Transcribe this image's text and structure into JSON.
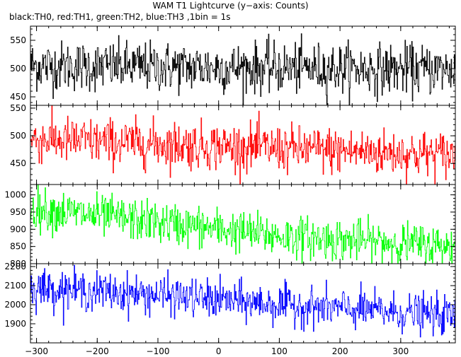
{
  "header": {
    "title": "WAM T1 Lightcurve (y−axis: Counts)",
    "subtitle": "black:TH0, red:TH1, green:TH2, blue:TH3 ,1bin = 1s"
  },
  "chart_data": {
    "type": "line",
    "x_ticks": [
      -300,
      -200,
      -100,
      0,
      100,
      200,
      300
    ],
    "xlim": [
      -310,
      390
    ],
    "bin_seconds": 1,
    "panels": [
      {
        "name": "TH0",
        "color": "#000000",
        "ylim": [
          435,
          575
        ],
        "y_ticks": [
          450,
          500,
          550
        ],
        "trend": [
          [
            -310,
            505
          ],
          [
            390,
            498
          ]
        ],
        "noise_sd": 22
      },
      {
        "name": "TH1",
        "color": "#ff0000",
        "ylim": [
          412,
          555
        ],
        "y_ticks": [
          450,
          500,
          550
        ],
        "trend": [
          [
            -310,
            494
          ],
          [
            390,
            465
          ]
        ],
        "noise_sd": 21
      },
      {
        "name": "TH2",
        "color": "#00ff00",
        "ylim": [
          800,
          1030
        ],
        "y_ticks": [
          800,
          850,
          900,
          950,
          1000
        ],
        "trend": [
          [
            -310,
            960
          ],
          [
            -100,
            920
          ],
          [
            100,
            880
          ],
          [
            390,
            850
          ]
        ],
        "noise_sd": 30
      },
      {
        "name": "TH3",
        "color": "#0000ff",
        "ylim": [
          1800,
          2215
        ],
        "y_ticks": [
          1900,
          2000,
          2100,
          2200
        ],
        "trend": [
          [
            -310,
            2090
          ],
          [
            -100,
            2050
          ],
          [
            100,
            2000
          ],
          [
            390,
            1940
          ]
        ],
        "noise_sd": 50
      }
    ]
  }
}
